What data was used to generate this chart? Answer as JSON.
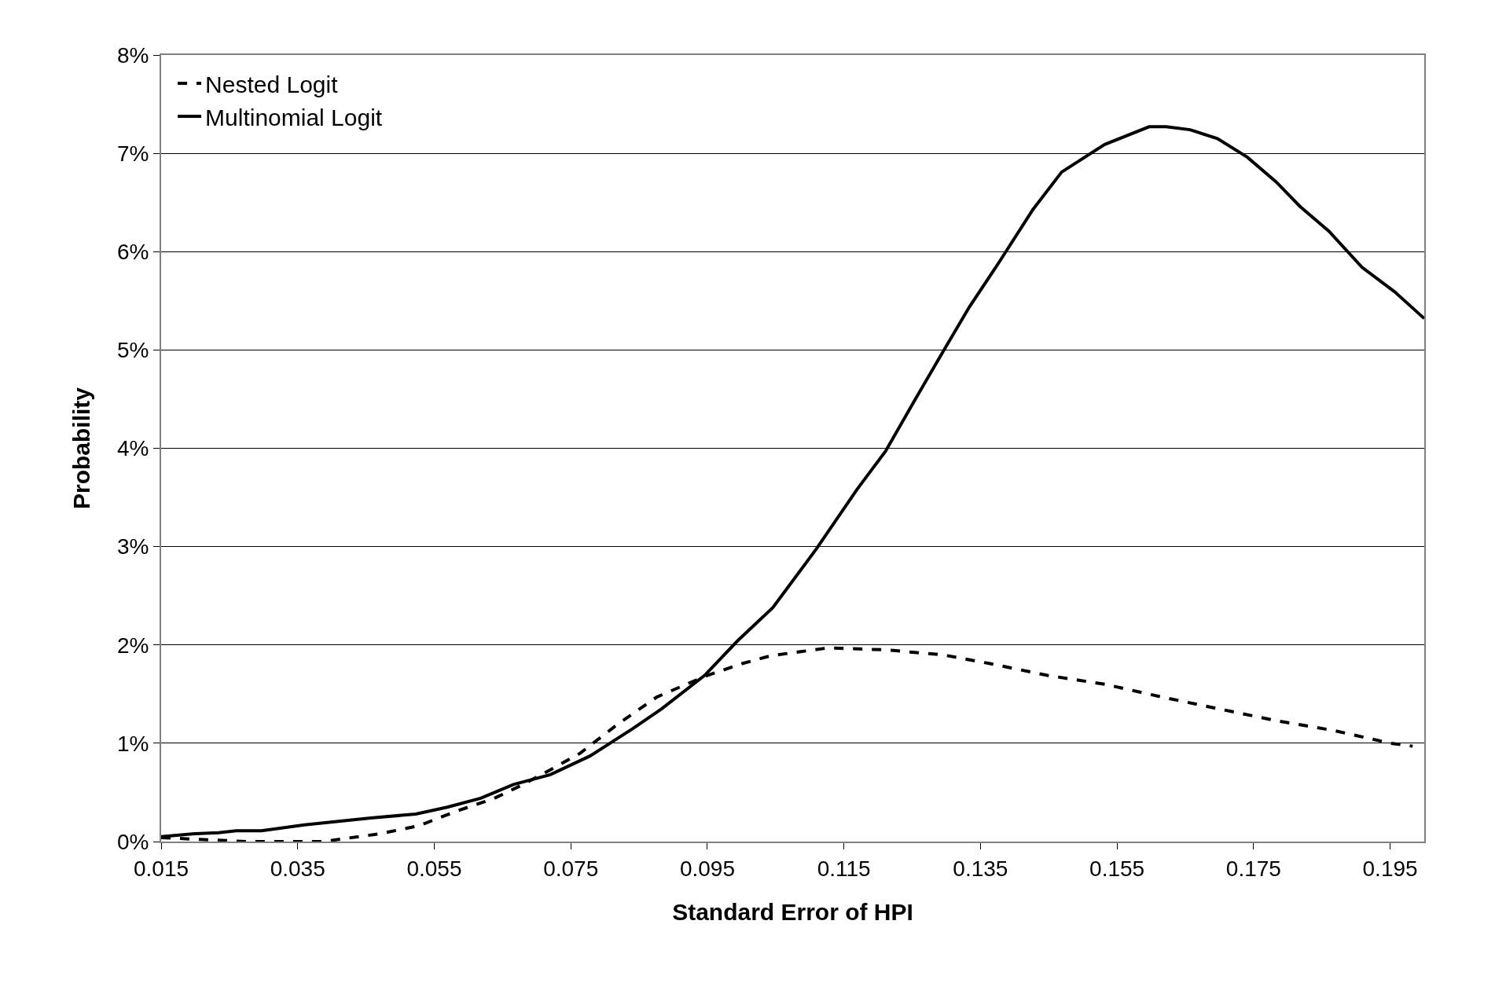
{
  "chart_data": {
    "type": "line",
    "xlabel": "Standard Error of HPI",
    "ylabel": "Probability",
    "xlim": [
      0.015,
      0.2
    ],
    "xticks": [
      0.015,
      0.035,
      0.055,
      0.075,
      0.095,
      0.115,
      0.135,
      0.155,
      0.175,
      0.195
    ],
    "ylim": [
      0,
      8
    ],
    "yticks": [
      {
        "value": 0,
        "label": "0%"
      },
      {
        "value": 1,
        "label": "1%"
      },
      {
        "value": 2,
        "label": "2%"
      },
      {
        "value": 3,
        "label": "3%"
      },
      {
        "value": 4,
        "label": "4%"
      },
      {
        "value": 5,
        "label": "5%"
      },
      {
        "value": 6,
        "label": "6%"
      },
      {
        "value": 7,
        "label": "7%"
      },
      {
        "value": 8,
        "label": "8%"
      }
    ],
    "grid": "y",
    "legend": "top left",
    "marker": "none",
    "series": [
      {
        "name": "Nested Logit",
        "color": "#000000",
        "line_style": "dashed",
        "x": [
          0.015,
          0.0213,
          0.0276,
          0.0387,
          0.0471,
          0.0527,
          0.0583,
          0.0638,
          0.068,
          0.072,
          0.0764,
          0.082,
          0.0876,
          0.0946,
          0.1001,
          0.1043,
          0.1085,
          0.1127,
          0.1211,
          0.1294,
          0.1364,
          0.1448,
          0.1532,
          0.1616,
          0.1699,
          0.1783,
          0.1867,
          0.1951,
          0.1983
        ],
        "values": [
          0.04,
          0.02,
          0,
          0,
          0.08,
          0.16,
          0.31,
          0.44,
          0.58,
          0.73,
          0.9,
          1.2,
          1.47,
          1.68,
          1.81,
          1.89,
          1.93,
          1.97,
          1.95,
          1.9,
          1.81,
          1.69,
          1.6,
          1.47,
          1.35,
          1.23,
          1.13,
          1.0,
          0.97
        ]
      },
      {
        "name": "Multinomial Logit",
        "color": "#000000",
        "line_style": "solid",
        "x": [
          0.015,
          0.0199,
          0.0234,
          0.026,
          0.0297,
          0.036,
          0.0457,
          0.0523,
          0.0569,
          0.0618,
          0.0666,
          0.072,
          0.0778,
          0.0841,
          0.0883,
          0.0946,
          0.0994,
          0.1046,
          0.111,
          0.1169,
          0.1211,
          0.1253,
          0.1294,
          0.1334,
          0.1378,
          0.1427,
          0.1469,
          0.1532,
          0.1597,
          0.1622,
          0.1657,
          0.1697,
          0.1741,
          0.1783,
          0.1818,
          0.186,
          0.1909,
          0.1957,
          0.2
        ],
        "values": [
          0.05,
          0.08,
          0.09,
          0.11,
          0.11,
          0.17,
          0.24,
          0.28,
          0.35,
          0.44,
          0.58,
          0.68,
          0.87,
          1.15,
          1.35,
          1.69,
          2.04,
          2.38,
          2.98,
          3.58,
          3.97,
          4.48,
          4.97,
          5.44,
          5.9,
          6.43,
          6.81,
          7.09,
          7.27,
          7.27,
          7.24,
          7.15,
          6.96,
          6.71,
          6.46,
          6.21,
          5.84,
          5.59,
          5.32
        ]
      }
    ]
  }
}
